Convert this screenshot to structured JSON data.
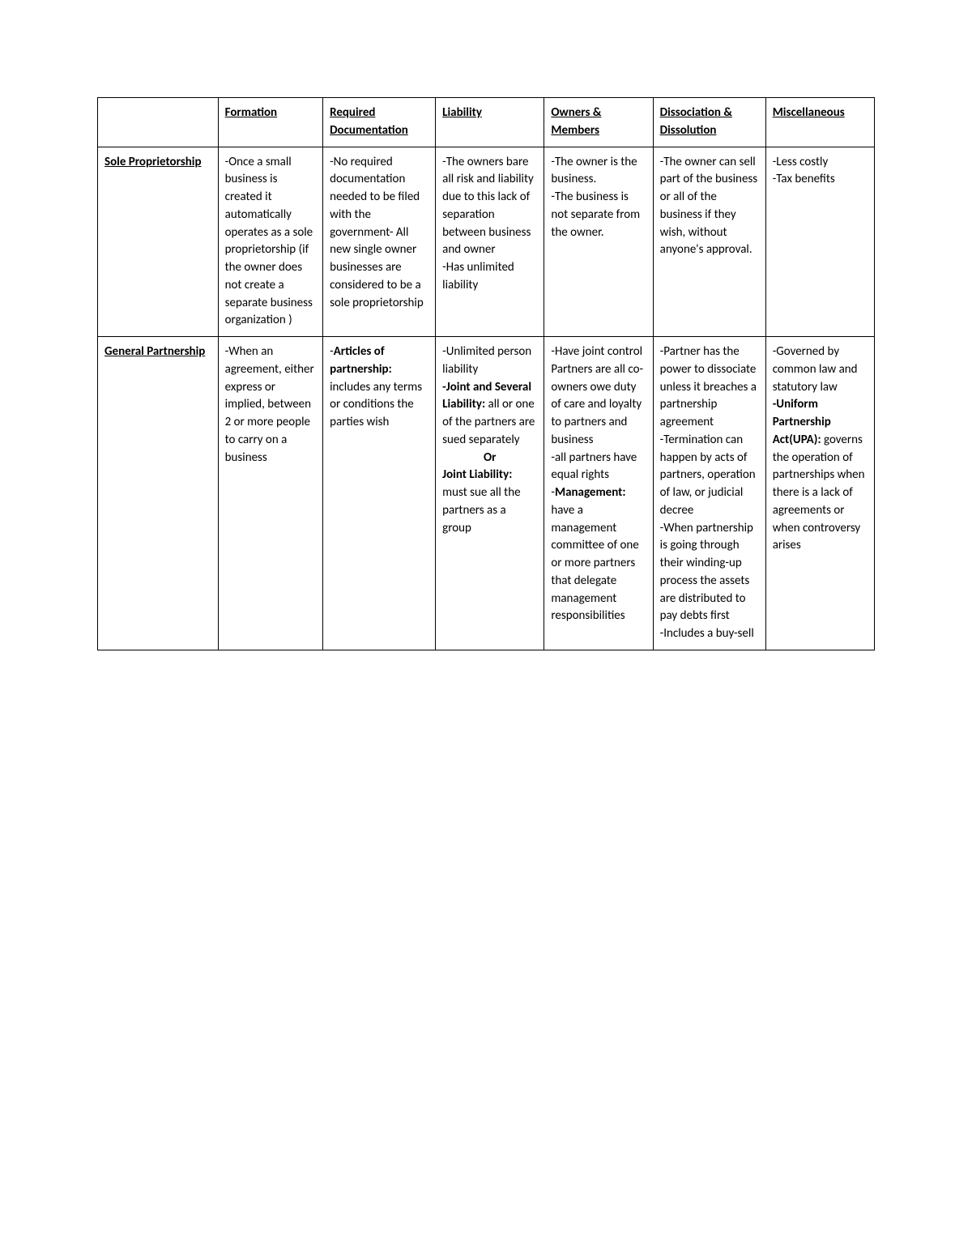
{
  "columns": [
    "",
    "Formation",
    "Required Documentation",
    "Liability",
    "Owners & Members",
    "Dissociation & Dissolution",
    "Miscellaneous"
  ],
  "rows": [
    {
      "label": "Sole Proprietorship",
      "formation": "-Once a small business is created it automatically operates as a sole proprietorship (if the owner does not create a separate business organization )",
      "documentation": "-No required documentation needed to be filed with the government- All new single owner businesses are considered to be a sole proprietorship",
      "liability": "-The owners bare all risk and liability due to this lack of separation between business and owner\n-Has unlimited liability",
      "owners": "-The owner is the business.\n-The business is not separate from the owner.",
      "dissociation": "-The owner can sell part of the business or all of the business if they wish, without anyone's approval.",
      "misc": "-Less costly\n-Tax benefits"
    },
    {
      "label": "General Partnership",
      "formation": "-When an agreement, either express or implied, between 2 or more people to carry on a business",
      "documentation_pre": "-",
      "documentation_bold": "Articles of partnership:",
      "documentation_post": " includes any terms or conditions the parties wish",
      "liability_p1": "-Unlimited person liability",
      "liability_b1": "-Joint and Several Liability:",
      "liability_p2": " all or one of the partners are sued separately",
      "liability_or": "Or",
      "liability_b2": "Joint Liability:",
      "liability_p3": " must sue all the partners as a group",
      "owners_p1": "-Have joint control Partners are all co-owners owe duty of care and loyalty to partners and business\n-all partners have equal rights\n-",
      "owners_b1": "Management:",
      "owners_p2": " have a management committee of one or more partners that delegate management responsibilities",
      "dissociation": "-Partner has the power to dissociate unless it breaches a partnership agreement\n-Termination can happen by acts of partners, operation of law, or judicial decree\n-When partnership is going through their winding-up process the assets are distributed to pay debts first\n-Includes a buy-sell",
      "misc_p1": "-Governed by common law and statutory law\n",
      "misc_b1": "-Uniform Partnership Act(UPA):",
      "misc_p2": " governs the operation of partnerships when there is a lack of agreements or when controversy arises"
    }
  ]
}
